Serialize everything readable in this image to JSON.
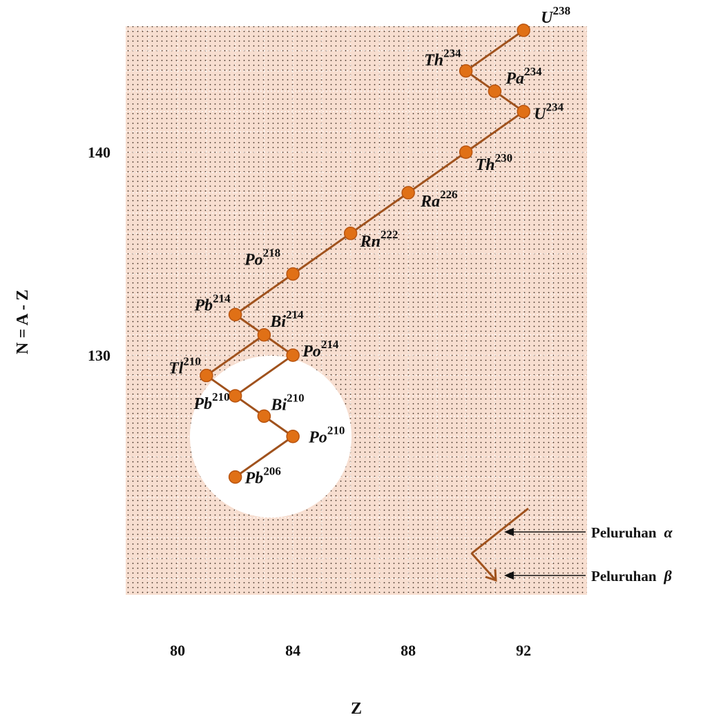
{
  "chart_data": {
    "type": "scatter",
    "title": "",
    "xlabel": "Z",
    "ylabel": "N = A - Z",
    "xlim": [
      78.2,
      94.2
    ],
    "ylim": [
      118.2,
      146.2
    ],
    "x_ticks": [
      "80",
      "84",
      "88",
      "92"
    ],
    "y_ticks": [
      "130",
      "140"
    ],
    "grid": true,
    "colors": {
      "background": "#f7ded0",
      "line": "#a0521d",
      "marker": "#e07016",
      "marker_edge": "#b85410",
      "arrow": "#111111"
    },
    "points": [
      {
        "id": "U238",
        "symbol": "U",
        "mass": "238",
        "z": 92,
        "n": 146
      },
      {
        "id": "Th234",
        "symbol": "Th",
        "mass": "234",
        "z": 90,
        "n": 144
      },
      {
        "id": "Pa234",
        "symbol": "Pa",
        "mass": "234",
        "z": 91,
        "n": 143
      },
      {
        "id": "U234",
        "symbol": "U",
        "mass": "234",
        "z": 92,
        "n": 142
      },
      {
        "id": "Th230",
        "symbol": "Th",
        "mass": "230",
        "z": 90,
        "n": 140
      },
      {
        "id": "Ra226",
        "symbol": "Ra",
        "mass": "226",
        "z": 88,
        "n": 138
      },
      {
        "id": "Rn222",
        "symbol": "Rn",
        "mass": "222",
        "z": 86,
        "n": 136
      },
      {
        "id": "Po218",
        "symbol": "Po",
        "mass": "218",
        "z": 84,
        "n": 134
      },
      {
        "id": "Pb214",
        "symbol": "Pb",
        "mass": "214",
        "z": 82,
        "n": 132
      },
      {
        "id": "Bi214",
        "symbol": "Bi",
        "mass": "214",
        "z": 83,
        "n": 131
      },
      {
        "id": "Po214",
        "symbol": "Po",
        "mass": "214",
        "z": 84,
        "n": 130
      },
      {
        "id": "Tl210",
        "symbol": "Tl",
        "mass": "210",
        "z": 81,
        "n": 129
      },
      {
        "id": "Pb210",
        "symbol": "Pb",
        "mass": "210",
        "z": 82,
        "n": 128
      },
      {
        "id": "Bi210",
        "symbol": "Bi",
        "mass": "210",
        "z": 83,
        "n": 127
      },
      {
        "id": "Po210",
        "symbol": "Po",
        "mass": "210",
        "z": 84,
        "n": 126
      },
      {
        "id": "Pb206",
        "symbol": "Pb",
        "mass": "206",
        "z": 82,
        "n": 124
      }
    ],
    "transitions": [
      [
        "U238",
        "Th234"
      ],
      [
        "Th234",
        "Pa234"
      ],
      [
        "Pa234",
        "U234"
      ],
      [
        "U234",
        "Th230"
      ],
      [
        "Th230",
        "Ra226"
      ],
      [
        "Ra226",
        "Rn222"
      ],
      [
        "Rn222",
        "Po218"
      ],
      [
        "Po218",
        "Pb214"
      ],
      [
        "Pb214",
        "Bi214"
      ],
      [
        "Bi214",
        "Po214"
      ],
      [
        "Bi214",
        "Tl210"
      ],
      [
        "Po214",
        "Pb210"
      ],
      [
        "Tl210",
        "Pb210"
      ],
      [
        "Pb210",
        "Bi210"
      ],
      [
        "Bi210",
        "Po210"
      ],
      [
        "Po210",
        "Pb206"
      ]
    ],
    "legend": {
      "alpha_label": "Peluruhan",
      "alpha_symbol": "α",
      "beta_label": "Peluruhan",
      "beta_symbol": "β"
    }
  }
}
